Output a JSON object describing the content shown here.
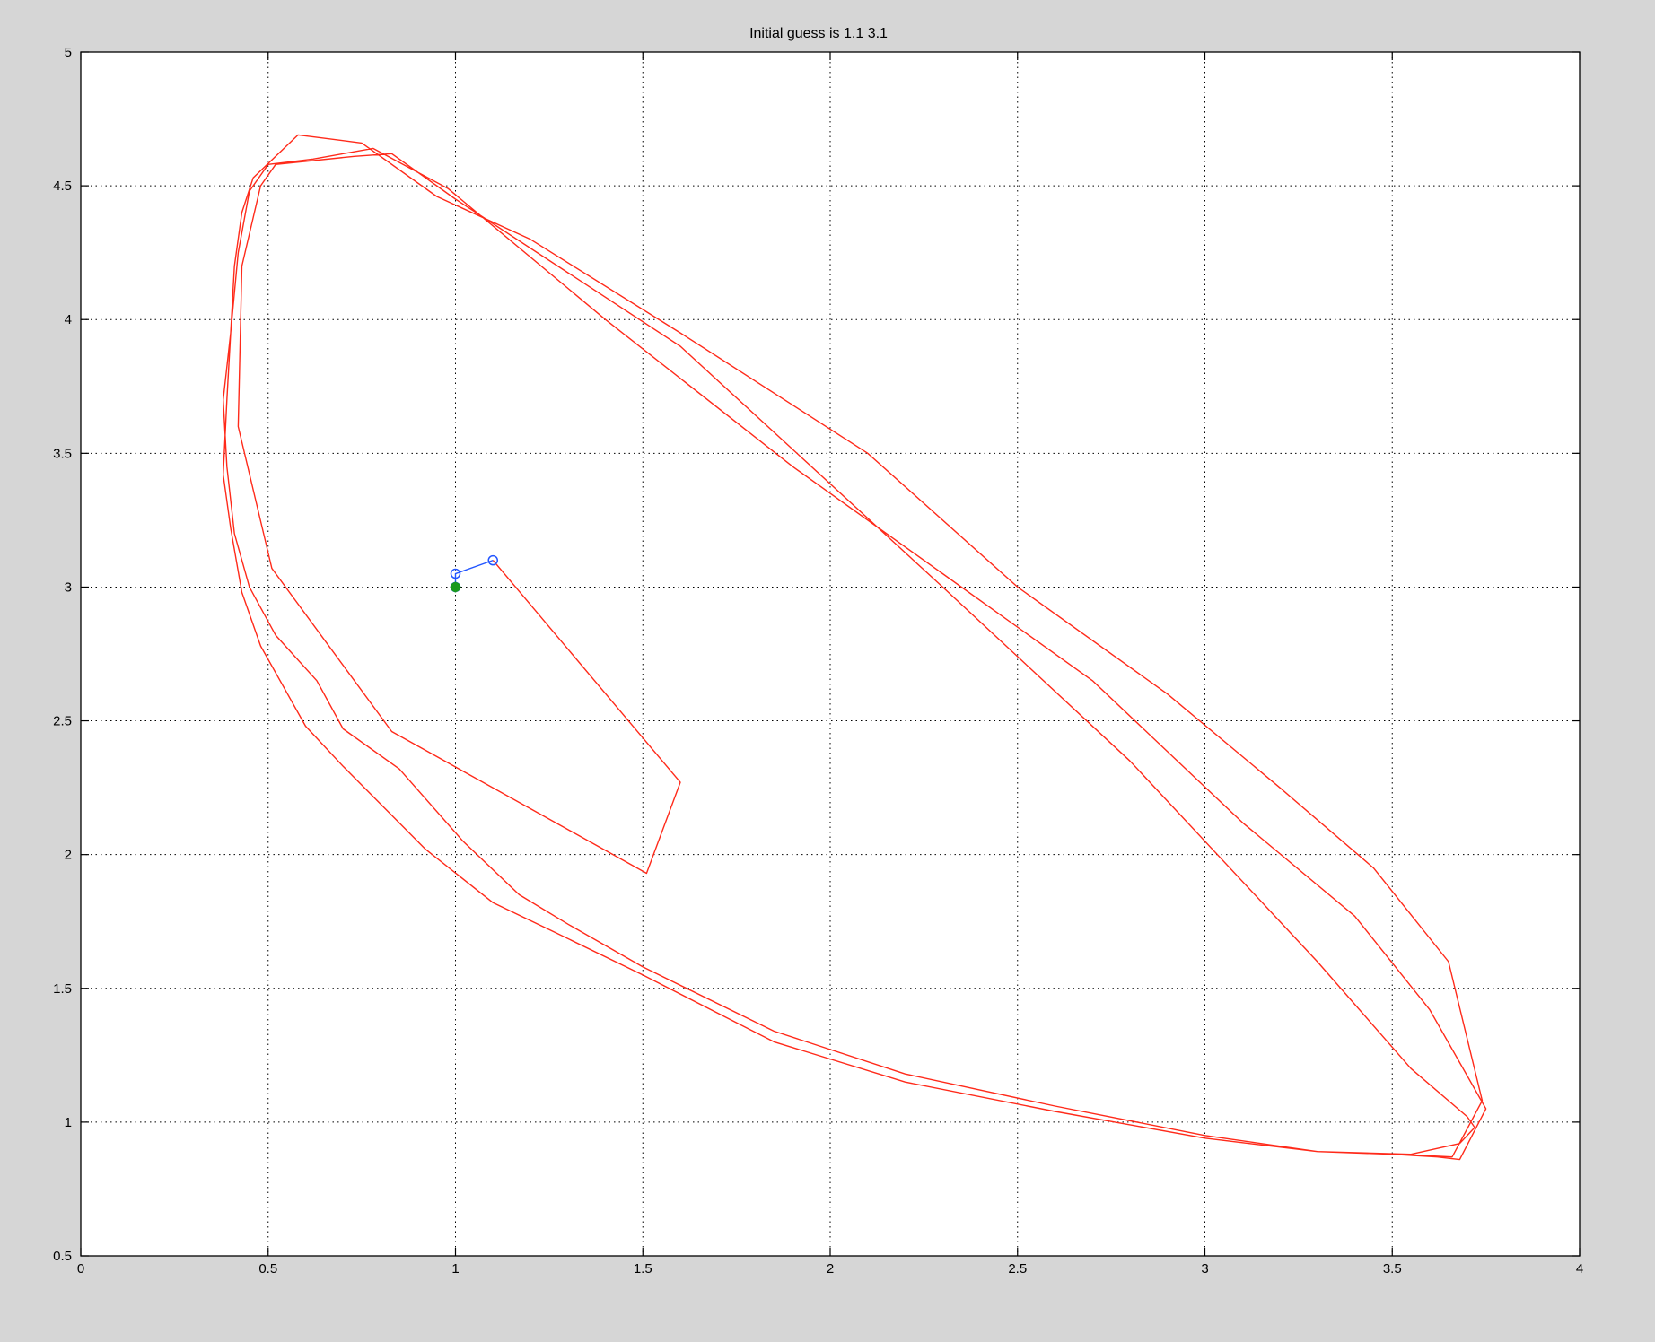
{
  "colors": {
    "figure_background": "#d6d6d6",
    "axes_background": "#ffffff",
    "trajectory": "#ff2a1a",
    "iterates": "#2255ff",
    "solution": "#1a9a1a"
  },
  "chart_data": {
    "type": "line",
    "title": "Initial guess is 1.1  3.1",
    "xlabel": "",
    "ylabel": "",
    "xlim": [
      0,
      4
    ],
    "ylim": [
      0.5,
      5
    ],
    "xticks": [
      0,
      0.5,
      1,
      1.5,
      2,
      2.5,
      3,
      3.5,
      4
    ],
    "yticks": [
      0.5,
      1,
      1.5,
      2,
      2.5,
      3,
      3.5,
      4,
      4.5,
      5
    ],
    "xtick_labels": [
      "0",
      "0.5",
      "1",
      "1.5",
      "2",
      "2.5",
      "3",
      "3.5",
      "4"
    ],
    "ytick_labels": [
      "0.5",
      "1",
      "1.5",
      "2",
      "2.5",
      "3",
      "3.5",
      "4",
      "4.5",
      "5"
    ],
    "grid": true,
    "legend": "none",
    "series": [
      {
        "color": "#ff2a1a",
        "marker": "none",
        "x": [
          1.1,
          1.6,
          1.51,
          0.83,
          0.51,
          0.42,
          0.43,
          0.48,
          0.52,
          0.73,
          0.83,
          1.0,
          1.6,
          2.3,
          2.8,
          3.3,
          3.55,
          3.7,
          3.72,
          3.68,
          3.55,
          3.3,
          3.0,
          2.6,
          2.2,
          1.85,
          1.5,
          1.25,
          1.1,
          0.92,
          0.7,
          0.6,
          0.48,
          0.43,
          0.4,
          0.38,
          0.39,
          0.4,
          0.42,
          0.45,
          0.5,
          0.62,
          0.78,
          0.98,
          1.4,
          1.9,
          2.3,
          2.7,
          3.1,
          3.4,
          3.6,
          3.75,
          3.68,
          3.62,
          3.5,
          3.3,
          3.0,
          2.6,
          2.2,
          1.85,
          1.5,
          1.3,
          1.17,
          1.02,
          0.85,
          0.7,
          0.63,
          0.52,
          0.45,
          0.41,
          0.39,
          0.38,
          0.4,
          0.41,
          0.43,
          0.46,
          0.49,
          0.58,
          0.75,
          0.95,
          1.2,
          1.6,
          2.1,
          2.5,
          2.9,
          3.2,
          3.45,
          3.65,
          3.74,
          3.66,
          3.52
        ],
        "y": [
          3.1,
          2.27,
          1.93,
          2.46,
          3.07,
          3.6,
          4.2,
          4.5,
          4.58,
          4.61,
          4.62,
          4.45,
          3.9,
          3.0,
          2.35,
          1.6,
          1.2,
          1.02,
          0.98,
          0.92,
          0.88,
          0.89,
          0.94,
          1.04,
          1.15,
          1.3,
          1.55,
          1.72,
          1.82,
          2.02,
          2.33,
          2.48,
          2.78,
          2.98,
          3.22,
          3.42,
          3.7,
          3.95,
          4.25,
          4.48,
          4.58,
          4.6,
          4.64,
          4.49,
          4.0,
          3.45,
          3.05,
          2.65,
          2.12,
          1.77,
          1.42,
          1.05,
          0.86,
          0.87,
          0.88,
          0.89,
          0.95,
          1.06,
          1.18,
          1.34,
          1.58,
          1.74,
          1.85,
          2.05,
          2.32,
          2.47,
          2.65,
          2.82,
          3.0,
          3.2,
          3.45,
          3.7,
          3.95,
          4.2,
          4.4,
          4.53,
          4.57,
          4.69,
          4.66,
          4.46,
          4.3,
          3.95,
          3.5,
          3.0,
          2.6,
          2.25,
          1.95,
          1.6,
          1.08,
          0.87,
          0.88
        ]
      },
      {
        "color": "#2255ff",
        "marker": "o",
        "x": [
          1.1,
          1.0,
          1.0
        ],
        "y": [
          3.1,
          3.05,
          3.0
        ]
      },
      {
        "color": "#1a9a1a",
        "marker": "*",
        "x": [
          1.0
        ],
        "y": [
          3.0
        ]
      }
    ]
  }
}
